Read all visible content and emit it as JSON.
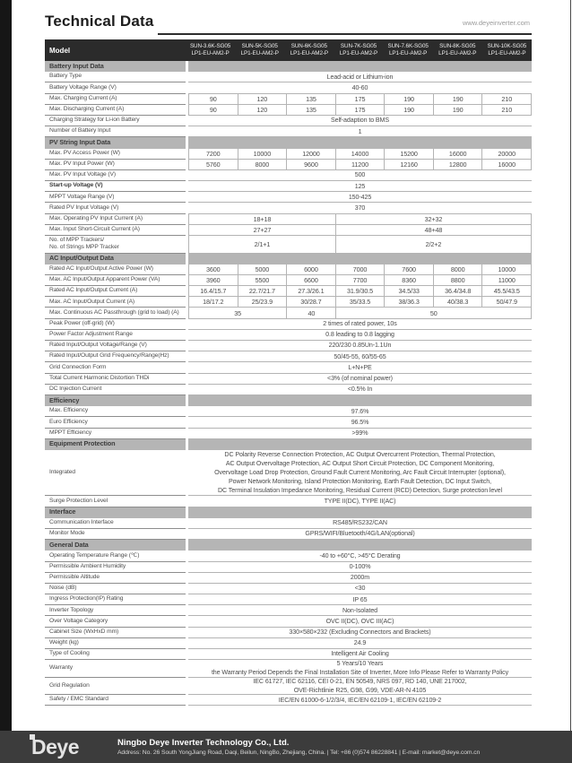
{
  "page": {
    "title": "Technical Data",
    "website": "www.deyeinverter.com"
  },
  "table": {
    "model_label": "Model",
    "models": [
      {
        "line1": "SUN-3.6K-SG05",
        "line2": "LP1-EU-AM2-P"
      },
      {
        "line1": "SUN-5K-SG05",
        "line2": "LP1-EU-AM2-P"
      },
      {
        "line1": "SUN-6K-SG05",
        "line2": "LP1-EU-AM2-P"
      },
      {
        "line1": "SUN-7K-SG05",
        "line2": "LP1-EU-AM2-P"
      },
      {
        "line1": "SUN-7.6K-SG05",
        "line2": "LP1-EU-AM2-P"
      },
      {
        "line1": "SUN-8K-SG05",
        "line2": "LP1-EU-AM2-P"
      },
      {
        "line1": "SUN-10K-SG05",
        "line2": "LP1-EU-AM2-P"
      }
    ],
    "rows": [
      {
        "type": "section",
        "label": "Battery Input Data"
      },
      {
        "type": "span",
        "label": "Battery Type",
        "value": "Lead-acid or Lithium-ion"
      },
      {
        "type": "span",
        "label": "Battery Voltage Range (V)",
        "value": "40-60"
      },
      {
        "type": "cells",
        "label": "Max. Charging Current (A)",
        "values": [
          "90",
          "120",
          "135",
          "175",
          "190",
          "190",
          "210"
        ]
      },
      {
        "type": "cells",
        "label": "Max. Discharging Current (A)",
        "values": [
          "90",
          "120",
          "135",
          "175",
          "190",
          "190",
          "210"
        ]
      },
      {
        "type": "span",
        "label": "Charging Strategy for Li-ion Battery",
        "value": "Self-adaption to BMS"
      },
      {
        "type": "span",
        "label": "Number of Battery Input",
        "value": "1"
      },
      {
        "type": "section",
        "label": "PV String Input Data"
      },
      {
        "type": "cells",
        "label": "Max. PV Access Power (W)",
        "values": [
          "7200",
          "10000",
          "12000",
          "14000",
          "15200",
          "16000",
          "20000"
        ]
      },
      {
        "type": "cells",
        "label": "Max. PV Input Power (W)",
        "values": [
          "5760",
          "8000",
          "9600",
          "11200",
          "12160",
          "12800",
          "16000"
        ]
      },
      {
        "type": "span",
        "label": "Max. PV Input Voltage (V)",
        "value": "500"
      },
      {
        "type": "span",
        "label": "Start-up Voltage (V)",
        "value": "125",
        "bold": true
      },
      {
        "type": "span",
        "label": "MPPT  Voltage Range (V)",
        "value": "150-425"
      },
      {
        "type": "span",
        "label": "Rated PV Input Voltage (V)",
        "value": "370"
      },
      {
        "type": "split",
        "label": "Max. Operating PV Input Current (A)",
        "spans": [
          {
            "text": "18+18",
            "cols": 3
          },
          {
            "text": "32+32",
            "cols": 4
          }
        ]
      },
      {
        "type": "split",
        "label": "Max. Input Short-Circuit Current (A)",
        "spans": [
          {
            "text": "27+27",
            "cols": 3
          },
          {
            "text": "48+48",
            "cols": 4
          }
        ]
      },
      {
        "type": "split",
        "label": [
          "No. of MPP Trackers/",
          "No. of Strings MPP Tracker"
        ],
        "spans": [
          {
            "text": "2/1+1",
            "cols": 3
          },
          {
            "text": "2/2+2",
            "cols": 4
          }
        ]
      },
      {
        "type": "section",
        "label": "AC Input/Output Data"
      },
      {
        "type": "cells",
        "label": "Rated AC Input/Output Active Power (W)",
        "values": [
          "3600",
          "5000",
          "6000",
          "7000",
          "7600",
          "8000",
          "10000"
        ]
      },
      {
        "type": "cells",
        "label": "Max. AC Input/Output Apparent Power (VA)",
        "values": [
          "3960",
          "5500",
          "6600",
          "7700",
          "8360",
          "8800",
          "11000"
        ]
      },
      {
        "type": "cells",
        "label": "Rated AC Input/Output Current (A)",
        "values": [
          "16.4/15.7",
          "22.7/21.7",
          "27.3/26.1",
          "31.9/30.5",
          "34.5/33",
          "36.4/34.8",
          "45.5/43.5"
        ]
      },
      {
        "type": "cells",
        "label": "Max. AC Input/Output Current (A)",
        "values": [
          "18/17.2",
          "25/23.9",
          "30/28.7",
          "35/33.5",
          "38/36.3",
          "40/38.3",
          "50/47.9"
        ]
      },
      {
        "type": "split",
        "label": "Max. Continuous AC Passthrough (grid to load) (A)",
        "spans": [
          {
            "text": "35",
            "cols": 2
          },
          {
            "text": "40",
            "cols": 1
          },
          {
            "text": "50",
            "cols": 4
          }
        ]
      },
      {
        "type": "span",
        "label": "Peak Power (off-grid) (W)",
        "value": "2 times of rated power, 10s"
      },
      {
        "type": "span",
        "label": "Power Factor Adjustment Range",
        "value": "0.8 leading to 0.8 lagging"
      },
      {
        "type": "span",
        "label": "Rated Input/Output Voltage/Range (V)",
        "value": "220/230  0.85Un-1.1Un"
      },
      {
        "type": "span",
        "label": "Rated Input/Output Grid Frequency/Range(Hz)",
        "value": "50/45-55, 60/55-65"
      },
      {
        "type": "span",
        "label": "Grid Connection Form",
        "value": "L+N+PE"
      },
      {
        "type": "span",
        "label": "Total Current Harmonic Distortion THDi",
        "value": "<3% (of nominal power)"
      },
      {
        "type": "span",
        "label": "DC Injection Current",
        "value": "<0.5% In"
      },
      {
        "type": "section",
        "label": "Efficiency"
      },
      {
        "type": "span",
        "label": "Max. Efficiency",
        "value": "97.6%"
      },
      {
        "type": "span",
        "label": "Euro Efficiency",
        "value": "96.5%"
      },
      {
        "type": "span",
        "label": "MPPT Efficiency",
        "value": ">99%"
      },
      {
        "type": "section",
        "label": "Equipment Protection"
      },
      {
        "type": "span",
        "label": "Integrated",
        "value": [
          "DC Polarity Reverse Connection Protection, AC Output Overcurrent Protection, Thermal Protection,",
          "AC Output Overvoltage Protection, AC Output Short Circuit Protection, DC Component Monitoring,",
          "Overvoltage Load Drop Protection, Ground Fault Current Monitoring, Arc Fault Circuit Interrupter (optional),",
          "Power Network Monitoring, Island Protection Monitoring, Earth Fault Detection, DC Input Switch,",
          "DC Terminal Insulation Impedance Monitoring, Residual Current (RCD) Detection, Surge protection level"
        ]
      },
      {
        "type": "span",
        "label": "Surge Protection Level",
        "value": "TYPE II(DC), TYPE II(AC)"
      },
      {
        "type": "section",
        "label": "Interface"
      },
      {
        "type": "span",
        "label": "Communication Interface",
        "value": "RS485/RS232/CAN"
      },
      {
        "type": "span",
        "label": "Monitor Mode",
        "value": "GPRS/WIFI/Bluetooth/4G/LAN(optional)"
      },
      {
        "type": "section",
        "label": "General Data"
      },
      {
        "type": "span",
        "label": "Operating Temperature Range (℃)",
        "value": "-40 to +60°C, >45°C Derating"
      },
      {
        "type": "span",
        "label": "Permissible Ambient Humidity",
        "value": "0-100%"
      },
      {
        "type": "span",
        "label": "Permissible Altitude",
        "value": "2000m"
      },
      {
        "type": "span",
        "label": "Noise (dB)",
        "value": "<30"
      },
      {
        "type": "span",
        "label": "Ingress Protection(IP) Rating",
        "value": "IP 65"
      },
      {
        "type": "span",
        "label": "Inverter Topology",
        "value": "Non-Isolated"
      },
      {
        "type": "span",
        "label": "Over Voltage Category",
        "value": "OVC II(DC), OVC III(AC)"
      },
      {
        "type": "span",
        "label": "Cabinet Size (WxHxD mm)",
        "value": "330×580×232 (Excluding Connectors and Brackets)"
      },
      {
        "type": "span",
        "label": "Weight (kg)",
        "value": "24.9"
      },
      {
        "type": "span",
        "label": "Type of Cooling",
        "value": "Intelligent Air Cooling"
      },
      {
        "type": "span",
        "label": "Warranty",
        "value": [
          "5 Years/10 Years",
          "the Warranty Period Depends the Final Installation Site of Inverter, More Info Please Refer to Warranty Policy"
        ]
      },
      {
        "type": "span",
        "label": "Grid Regulation",
        "value": [
          "IEC 61727, IEC 62116, CEI 0-21, EN 50549, NRS 097, RD 140, UNE 217002,",
          "OVE-Richtlinie R25, G98, G99, VDE-AR-N 4105"
        ]
      },
      {
        "type": "span",
        "label": "Safety / EMC Standard",
        "value": "IEC/EN 61000-6-1/2/3/4, IEC/EN 62109-1, IEC/EN 62109-2"
      }
    ]
  },
  "footer": {
    "logo": "Deye",
    "company": "Ningbo Deye Inverter Technology Co., Ltd.",
    "address": "Address: No. 26 South YongJiang Road, Daqi, Beilun, NingBo, Zhejiang, China.  |  Tel: +86 (0)574 86228841  |  E-mail: market@deye.com.cn"
  }
}
